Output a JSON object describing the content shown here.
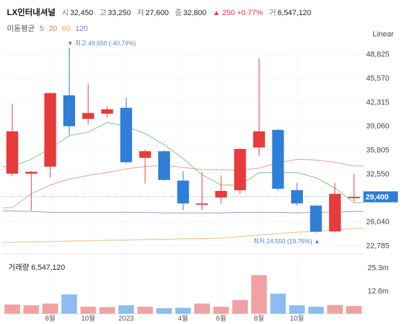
{
  "header": {
    "name": "LX인터내셔널",
    "open_label": "시",
    "open": "32,450",
    "high_label": "고",
    "high": "33,250",
    "low_label": "저",
    "low": "27,600",
    "close_label": "종",
    "close": "32,800",
    "change": "▲ 250 +0.77%",
    "volume_label": "거",
    "volume": "6,547,120"
  },
  "ma_legend": {
    "label": "이동평균",
    "p5": "5",
    "p20": "20",
    "p60": "60",
    "p120": "120"
  },
  "scale_button": "Linear",
  "volume_title": "거래량 6,547,120",
  "colors": {
    "up": "#e8393b",
    "down": "#2f7ed8",
    "ma5": "#7ac77a",
    "ma20": "#e89a9a",
    "ma60": "#a78bd6",
    "ma120": "#f2b77e",
    "vol_up": "#f0a2a2",
    "vol_down": "#8dbcf0"
  },
  "chart_data": {
    "type": "candlestick",
    "price_axis": {
      "ticks": [
        "48,825",
        "45,570",
        "42,315",
        "39,060",
        "35,805",
        "32,550",
        "26,040",
        "22,785"
      ],
      "tick_values": [
        48825,
        45570,
        42315,
        39060,
        35805,
        32550,
        26040,
        22785
      ],
      "ylim": [
        22000,
        50000
      ]
    },
    "current_price_label": "29,400",
    "current_price": 29400,
    "max_annotation": "▼ 최고 49,650 (-40.79%)",
    "min_annotation": "최저 24,550 (19.76%) ▲",
    "x_labels": [
      "8월",
      "10월",
      "2023",
      "4월",
      "6월",
      "8월",
      "10월"
    ],
    "x_label_index": [
      2.5,
      4.5,
      6.5,
      9.5,
      11.5,
      13.5,
      15.5
    ],
    "candles": [
      {
        "o": 32550,
        "h": 42000,
        "l": 32200,
        "c": 38300
      },
      {
        "o": 32550,
        "h": 32900,
        "l": 27500,
        "c": 32800
      },
      {
        "o": 33500,
        "h": 43600,
        "l": 32000,
        "c": 43500
      },
      {
        "o": 43200,
        "h": 49650,
        "l": 37800,
        "c": 39000
      },
      {
        "o": 40000,
        "h": 44800,
        "l": 39200,
        "c": 40800
      },
      {
        "o": 40700,
        "h": 41700,
        "l": 40200,
        "c": 41300
      },
      {
        "o": 41500,
        "h": 42900,
        "l": 34000,
        "c": 34100
      },
      {
        "o": 34700,
        "h": 35800,
        "l": 31200,
        "c": 35600
      },
      {
        "o": 35600,
        "h": 35700,
        "l": 31600,
        "c": 31700
      },
      {
        "o": 31600,
        "h": 32900,
        "l": 27600,
        "c": 28500
      },
      {
        "o": 28500,
        "h": 32800,
        "l": 27600,
        "c": 28500
      },
      {
        "o": 29300,
        "h": 32300,
        "l": 28500,
        "c": 30200
      },
      {
        "o": 30300,
        "h": 36000,
        "l": 29800,
        "c": 35900
      },
      {
        "o": 36100,
        "h": 48200,
        "l": 35000,
        "c": 38300
      },
      {
        "o": 38500,
        "h": 38600,
        "l": 30200,
        "c": 30500
      },
      {
        "o": 30300,
        "h": 31300,
        "l": 28200,
        "c": 28500
      },
      {
        "o": 28200,
        "h": 28300,
        "l": 24550,
        "c": 24650
      },
      {
        "o": 24700,
        "h": 31300,
        "l": 24550,
        "c": 29800
      },
      {
        "o": 29300,
        "h": 32500,
        "l": 28800,
        "c": 29400
      }
    ],
    "ma5": [
      33500,
      34500,
      36000,
      37700,
      38200,
      39500,
      39000,
      38000,
      36500,
      34600,
      32400,
      31000,
      31000,
      32700,
      32700,
      32700,
      32000,
      30600,
      28600
    ],
    "ma20": [
      27900,
      29800,
      31000,
      31800,
      32300,
      32700,
      33200,
      33500,
      33700,
      33400,
      33100,
      33100,
      33000,
      33300,
      34000,
      34500,
      34400,
      34100,
      33600
    ],
    "ma60": [
      27500,
      27400,
      27300,
      27300,
      27300,
      27300,
      27300,
      27300,
      27200,
      27200,
      27200,
      27200,
      27300,
      27300,
      27300,
      27200,
      27300,
      27300,
      27400
    ],
    "ma120": [
      23200,
      23300,
      23300,
      23400,
      23400,
      23500,
      23500,
      23600,
      23600,
      23700,
      23700,
      23800,
      24000,
      24200,
      24400,
      24600,
      24700,
      24900,
      25100
    ],
    "volume_axis": {
      "ticks": [
        "25.3m",
        "12.6m"
      ],
      "tick_values": [
        25.3,
        12.6
      ],
      "ylim": [
        0,
        31
      ]
    },
    "volume": [
      5.0,
      4.6,
      5.5,
      10.5,
      3.8,
      3.6,
      4.6,
      3.8,
      3.0,
      3.2,
      5.5,
      3.8,
      7.5,
      21.0,
      10.9,
      4.6,
      3.8,
      4.7,
      4.2
    ]
  }
}
